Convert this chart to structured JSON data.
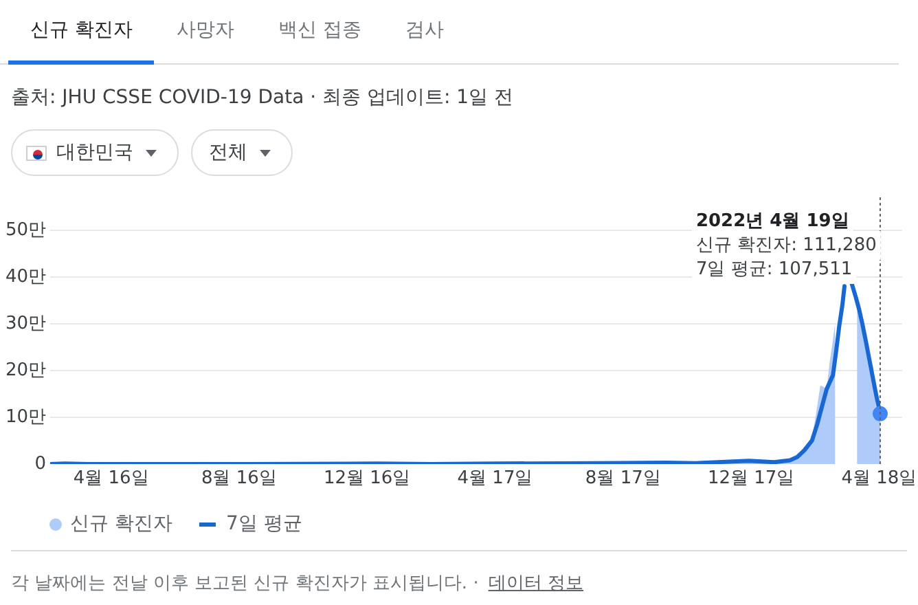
{
  "chart_data": {
    "type": "line",
    "title": "신규 확진자",
    "subtitle": "출처: JHU CSSE COVID-19 Data · 최종 업데이트: 1일 전",
    "annotations": [
      "사망자",
      "백신 접종",
      "검사",
      "대한민국",
      "전체",
      {
        "text": "2022년 4월 19일",
        "x": "2022-04-19"
      },
      {
        "text": "신규 확진자: 111,280",
        "x": "2022-04-19"
      },
      {
        "text": "7일 평균: 107,511",
        "x": "2022-04-19"
      },
      "각 날짜에는 전날 이후 보고된 신규 확진자가 표시됩니다. ·",
      "데이터 정보"
    ],
    "xlim": [
      "2020-02-18",
      "2022-05-10"
    ],
    "xticks": [
      {
        "value": "2020-04-16",
        "label": "4월 16일"
      },
      {
        "value": "2020-08-16",
        "label": "8월 16일"
      },
      {
        "value": "2020-12-16",
        "label": "12월 16일"
      },
      {
        "value": "2021-04-17",
        "label": "4월 17일"
      },
      {
        "value": "2021-08-17",
        "label": "8월 17일"
      },
      {
        "value": "2021-12-17",
        "label": "12월 17일"
      },
      {
        "value": "2022-04-18",
        "label": "4월 18일"
      }
    ],
    "ylim": [
      0,
      57
    ],
    "yticks": [
      0,
      {
        "value": 10,
        "label": "10만"
      },
      {
        "value": 20,
        "label": "20만"
      },
      {
        "value": 30,
        "label": "30만"
      },
      {
        "value": 40,
        "label": "40만"
      },
      {
        "value": 50,
        "label": "50만"
      }
    ],
    "grid": "y",
    "legend": "bottom left",
    "ref_lines": [
      {
        "axis": "x",
        "value": "2022-04-19",
        "color": "#5f6368",
        "line_style": "dotted"
      }
    ],
    "series": [
      {
        "name": "신규 확진자",
        "type": "area",
        "color": "#aecbfa",
        "x": [
          "2020-02-18",
          "2020-02-29",
          "2020-03-20",
          "2020-08-27",
          "2020-12-25",
          "2021-02-15",
          "2021-04-17",
          "2021-07-25",
          "2021-09-25",
          "2021-10-25",
          "2021-12-15",
          "2022-01-08",
          "2022-01-23",
          "2022-01-30",
          "2022-02-06",
          "2022-02-13",
          "2022-02-17",
          "2022-02-21",
          "2022-02-24",
          "2022-02-27",
          "2022-03-02",
          "2022-03-05",
          "2022-03-07",
          "2022-03-10",
          "2022-03-20",
          "2022-03-28",
          "2022-03-31",
          "2022-04-03",
          "2022-04-06",
          "2022-04-09",
          "2022-04-12",
          "2022-04-15",
          "2022-04-18",
          "2022-04-19"
        ],
        "values": [
          0,
          0.1,
          0,
          0,
          0.1,
          0,
          0.1,
          0.2,
          0.3,
          0.1,
          0.8,
          0.4,
          0.8,
          1.8,
          3.8,
          5.6,
          10.9,
          16.8,
          16.5,
          16,
          22,
          26.5,
          30,
          null,
          null,
          35,
          32,
          26.5,
          28,
          20,
          21,
          12.5,
          9.5,
          11.128
        ]
      },
      {
        "name": "7일 평균",
        "color": "#1967d2",
        "x": [
          "2020-02-18",
          "2020-03-03",
          "2020-03-25",
          "2020-08-27",
          "2020-12-25",
          "2021-02-15",
          "2021-04-17",
          "2021-07-25",
          "2021-09-27",
          "2021-10-25",
          "2021-12-15",
          "2022-01-08",
          "2022-01-23",
          "2022-01-30",
          "2022-02-06",
          "2022-02-13",
          "2022-02-18",
          "2022-02-21",
          "2022-02-27",
          "2022-03-05",
          "2022-03-08",
          "2022-03-11",
          "2022-03-14",
          "2022-03-16",
          "2022-03-19",
          "2022-03-21",
          "2022-03-23",
          "2022-03-27",
          "2022-03-30",
          "2022-04-02",
          "2022-04-06",
          "2022-04-09",
          "2022-04-12",
          "2022-04-15",
          "2022-04-19"
        ],
        "values": [
          0,
          0.1,
          0,
          0,
          0.1,
          0,
          0.1,
          0.2,
          0.3,
          0.2,
          0.7,
          0.4,
          0.8,
          1.5,
          3,
          5,
          8.5,
          11,
          16,
          19,
          24,
          29.5,
          34,
          38,
          null,
          null,
          38.5,
          35.5,
          33,
          30,
          25.5,
          22,
          18.5,
          15,
          10.7511
        ]
      },
      {
        "type": "scatter",
        "color": "#4285f4",
        "marker": "circle",
        "x": [
          "2022-04-19"
        ],
        "values": [
          10.7511
        ]
      }
    ]
  }
}
